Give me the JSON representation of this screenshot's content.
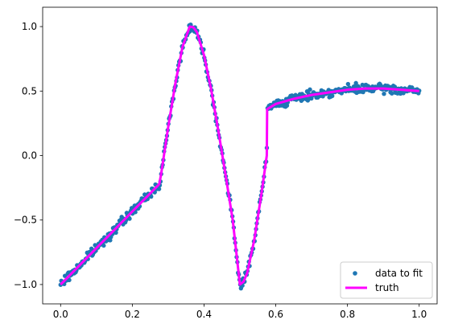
{
  "chart_data": {
    "type": "scatter",
    "title": "",
    "xlabel": "",
    "ylabel": "",
    "xlim": [
      -0.05,
      1.05
    ],
    "ylim": [
      -1.15,
      1.15
    ],
    "xticks": [
      0.0,
      0.2,
      0.4,
      0.6,
      0.8,
      1.0
    ],
    "xtick_labels": [
      "0.0",
      "0.2",
      "0.4",
      "0.6",
      "0.8",
      "1.0"
    ],
    "yticks": [
      -1.0,
      -0.5,
      0.0,
      0.5,
      1.0
    ],
    "ytick_labels": [
      "−1.0",
      "−0.5",
      "0.0",
      "0.5",
      "1.0"
    ],
    "grid": false,
    "legend_position": "lower-right",
    "series": [
      {
        "name": "data to fit",
        "kind": "scatter",
        "color": "#1f77b4",
        "n_points": 500,
        "noise_amplitude": 0.03,
        "description": "noisy samples of the truth curve"
      },
      {
        "name": "truth",
        "kind": "line",
        "color": "#ff00ff",
        "x": [
          0.0,
          0.05,
          0.1,
          0.15,
          0.2,
          0.25,
          0.275,
          0.28,
          0.3,
          0.32,
          0.34,
          0.36,
          0.37,
          0.38,
          0.4,
          0.42,
          0.44,
          0.46,
          0.48,
          0.5,
          0.51,
          0.52,
          0.54,
          0.56,
          0.575,
          0.576,
          0.6,
          0.65,
          0.7,
          0.75,
          0.8,
          0.85,
          0.9,
          0.95,
          1.0
        ],
        "y": [
          -1.0,
          -0.859,
          -0.717,
          -0.576,
          -0.434,
          -0.293,
          -0.222,
          -0.15,
          0.22,
          0.559,
          0.843,
          1.0,
          0.995,
          0.958,
          0.778,
          0.51,
          0.19,
          -0.149,
          -0.5,
          -1.0,
          -0.978,
          -0.914,
          -0.655,
          -0.299,
          0.0,
          0.36,
          0.4,
          0.44,
          0.47,
          0.49,
          0.51,
          0.52,
          0.52,
          0.51,
          0.5
        ]
      }
    ]
  }
}
